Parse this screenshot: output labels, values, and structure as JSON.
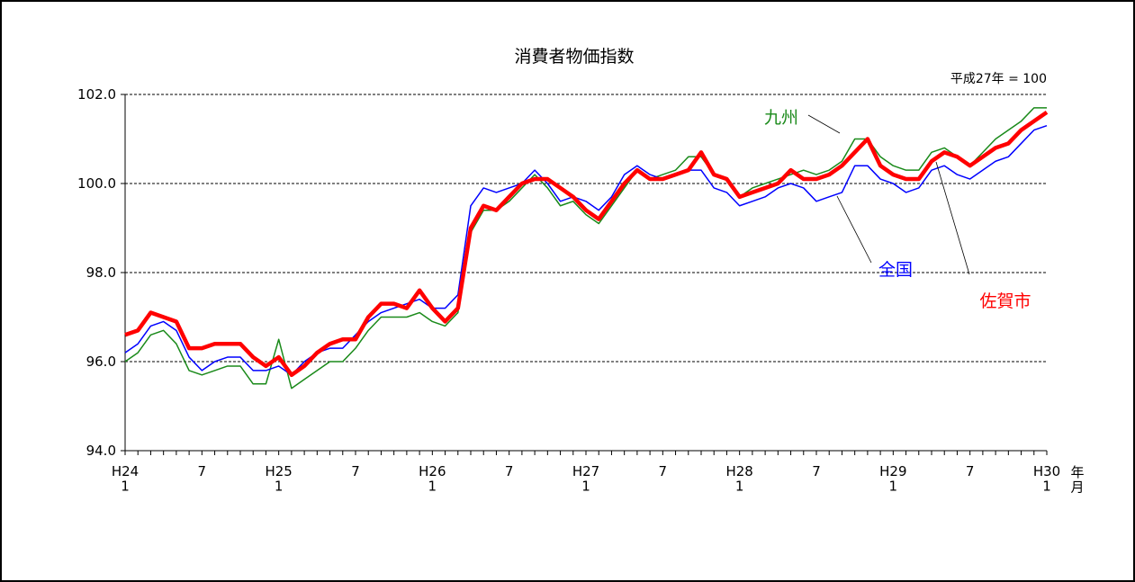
{
  "chart_data": {
    "type": "line",
    "title": "消費者物価指数",
    "note": "平成27年 = 100",
    "x_label": "年\n月",
    "categories": [
      "H24\n1",
      null,
      null,
      null,
      null,
      null,
      "7",
      null,
      null,
      null,
      null,
      null,
      "H25\n1",
      null,
      null,
      null,
      null,
      null,
      "7",
      null,
      null,
      null,
      null,
      null,
      "H26\n1",
      null,
      null,
      null,
      null,
      null,
      "7",
      null,
      null,
      null,
      null,
      null,
      "H27\n1",
      null,
      null,
      null,
      null,
      null,
      "7",
      null,
      null,
      null,
      null,
      null,
      "H28\n1",
      null,
      null,
      null,
      null,
      null,
      "7",
      null,
      null,
      null,
      null,
      null,
      "H29\n1",
      null,
      null,
      null,
      null,
      null,
      "7",
      null,
      null,
      null,
      null,
      null,
      "H30\n1"
    ],
    "series": [
      {
        "name": "九州",
        "color": "#1a8a1a",
        "linewidth": 1.5,
        "values": [
          96.0,
          96.2,
          96.6,
          96.7,
          96.4,
          95.8,
          95.7,
          95.8,
          95.9,
          95.9,
          95.5,
          95.5,
          96.5,
          95.4,
          95.6,
          95.8,
          96.0,
          96.0,
          96.3,
          96.7,
          97.0,
          97.0,
          97.0,
          97.1,
          96.9,
          96.8,
          97.1,
          98.9,
          99.4,
          99.4,
          99.6,
          99.9,
          100.2,
          99.9,
          99.5,
          99.6,
          99.3,
          99.1,
          99.5,
          99.9,
          100.3,
          100.1,
          100.2,
          100.3,
          100.6,
          100.6,
          100.2,
          100.1,
          99.7,
          99.9,
          100.0,
          100.1,
          100.2,
          100.3,
          100.2,
          100.3,
          100.5,
          101.0,
          101.0,
          100.6,
          100.4,
          100.3,
          100.3,
          100.7,
          100.8,
          100.6,
          100.4,
          100.7,
          101.0,
          101.2,
          101.4,
          101.7,
          101.7
        ]
      },
      {
        "name": "全国",
        "color": "#0000ff",
        "linewidth": 1.5,
        "values": [
          96.2,
          96.4,
          96.8,
          96.9,
          96.7,
          96.1,
          95.8,
          96.0,
          96.1,
          96.1,
          95.8,
          95.8,
          95.9,
          95.7,
          96.0,
          96.2,
          96.3,
          96.3,
          96.6,
          96.9,
          97.1,
          97.2,
          97.3,
          97.4,
          97.2,
          97.2,
          97.5,
          99.5,
          99.9,
          99.8,
          99.9,
          100.0,
          100.3,
          100.0,
          99.6,
          99.7,
          99.6,
          99.4,
          99.7,
          100.2,
          100.4,
          100.2,
          100.1,
          100.2,
          100.3,
          100.3,
          99.9,
          99.8,
          99.5,
          99.6,
          99.7,
          99.9,
          100.0,
          99.9,
          99.6,
          99.7,
          99.8,
          100.4,
          100.4,
          100.1,
          100.0,
          99.8,
          99.9,
          100.3,
          100.4,
          100.2,
          100.1,
          100.3,
          100.5,
          100.6,
          100.9,
          101.2,
          101.3
        ]
      },
      {
        "name": "佐賀市",
        "color": "#ff0000",
        "linewidth": 4.5,
        "values": [
          96.6,
          96.7,
          97.1,
          97.0,
          96.9,
          96.3,
          96.3,
          96.4,
          96.4,
          96.4,
          96.1,
          95.9,
          96.1,
          95.7,
          95.9,
          96.2,
          96.4,
          96.5,
          96.5,
          97.0,
          97.3,
          97.3,
          97.2,
          97.6,
          97.2,
          96.9,
          97.2,
          99.0,
          99.5,
          99.4,
          99.7,
          100.0,
          100.1,
          100.1,
          99.9,
          99.7,
          99.4,
          99.2,
          99.6,
          100.0,
          100.3,
          100.1,
          100.1,
          100.2,
          100.3,
          100.7,
          100.2,
          100.1,
          99.7,
          99.8,
          99.9,
          100.0,
          100.3,
          100.1,
          100.1,
          100.2,
          100.4,
          100.7,
          101.0,
          100.4,
          100.2,
          100.1,
          100.1,
          100.5,
          100.7,
          100.6,
          100.4,
          100.6,
          100.8,
          100.9,
          101.2,
          101.4,
          101.6
        ]
      }
    ],
    "ylim": [
      94,
      102
    ],
    "yticks": [
      {
        "value": 94,
        "label": "94.0"
      },
      {
        "value": 96,
        "label": "96.0"
      },
      {
        "value": 98,
        "label": "98.0"
      },
      {
        "value": 100,
        "label": "100.0"
      },
      {
        "value": 102,
        "label": "102.0"
      }
    ],
    "grid": true
  }
}
